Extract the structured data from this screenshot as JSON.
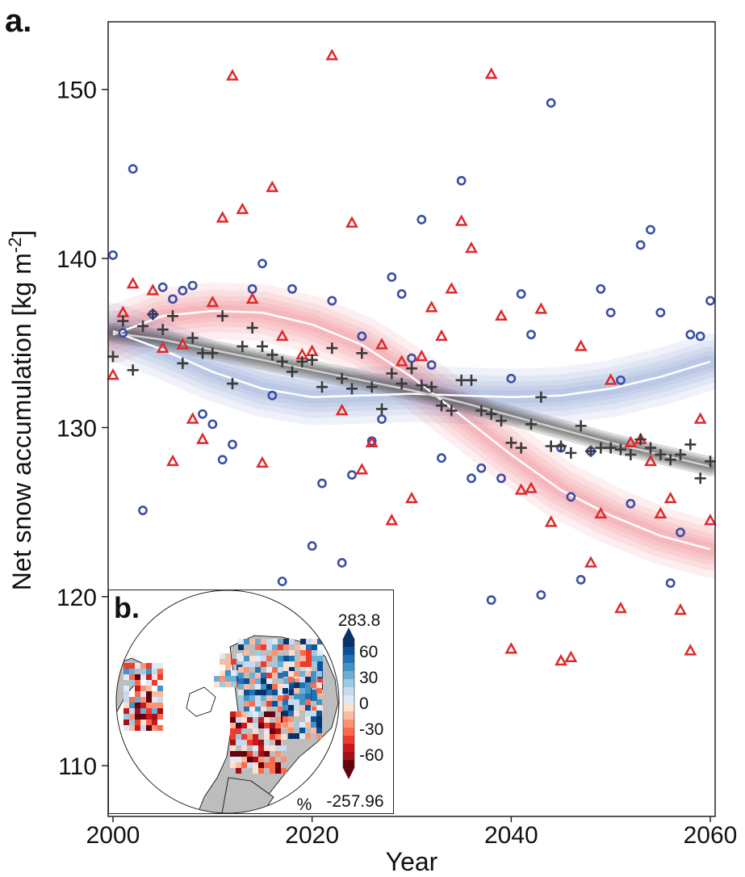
{
  "panel_a_label": "a.",
  "panel_b_label": "b.",
  "chart_data": {
    "type": "scatter",
    "xlabel": "Year",
    "ylabel": "Net snow accumulation [kg m",
    "ylabel_sup": "-2",
    "ylabel_tail": "]",
    "xlim": [
      2000,
      2060
    ],
    "ylim": [
      107,
      154
    ],
    "xticks": [
      2000,
      2020,
      2040,
      2060
    ],
    "yticks": [
      110,
      120,
      130,
      140,
      150
    ],
    "series": [
      {
        "marker": "circle",
        "color": "#3a4ea6",
        "points": [
          [
            2000,
            140.2
          ],
          [
            2001,
            135.6
          ],
          [
            2002,
            145.3
          ],
          [
            2003,
            125.1
          ],
          [
            2004,
            136.7
          ],
          [
            2005,
            138.3
          ],
          [
            2006,
            137.6
          ],
          [
            2007,
            138.1
          ],
          [
            2008,
            138.4
          ],
          [
            2009,
            130.8
          ],
          [
            2010,
            130.2
          ],
          [
            2011,
            128.1
          ],
          [
            2012,
            129.0
          ],
          [
            2014,
            138.2
          ],
          [
            2015,
            139.7
          ],
          [
            2016,
            131.9
          ],
          [
            2017,
            120.9
          ],
          [
            2018,
            138.2
          ],
          [
            2020,
            123.0
          ],
          [
            2021,
            126.7
          ],
          [
            2022,
            137.5
          ],
          [
            2023,
            122.0
          ],
          [
            2024,
            127.2
          ],
          [
            2025,
            135.4
          ],
          [
            2026,
            129.2
          ],
          [
            2027,
            130.5
          ],
          [
            2028,
            138.9
          ],
          [
            2029,
            137.9
          ],
          [
            2030,
            134.1
          ],
          [
            2031,
            142.3
          ],
          [
            2032,
            133.7
          ],
          [
            2033,
            128.2
          ],
          [
            2035,
            144.6
          ],
          [
            2036,
            127.0
          ],
          [
            2037,
            127.6
          ],
          [
            2038,
            119.8
          ],
          [
            2039,
            127.0
          ],
          [
            2040,
            132.9
          ],
          [
            2041,
            137.9
          ],
          [
            2042,
            135.5
          ],
          [
            2043,
            120.1
          ],
          [
            2044,
            149.2
          ],
          [
            2045,
            128.8
          ],
          [
            2046,
            125.9
          ],
          [
            2047,
            121.0
          ],
          [
            2048,
            128.6
          ],
          [
            2049,
            138.2
          ],
          [
            2050,
            136.8
          ],
          [
            2051,
            132.8
          ],
          [
            2052,
            125.5
          ],
          [
            2053,
            140.8
          ],
          [
            2054,
            141.7
          ],
          [
            2055,
            136.8
          ],
          [
            2056,
            120.8
          ],
          [
            2057,
            123.8
          ],
          [
            2058,
            135.5
          ],
          [
            2059,
            135.4
          ],
          [
            2060,
            137.5
          ]
        ]
      },
      {
        "marker": "triangle",
        "color": "#e0282a",
        "points": [
          [
            2000,
            133.1
          ],
          [
            2001,
            136.8
          ],
          [
            2002,
            138.5
          ],
          [
            2004,
            138.1
          ],
          [
            2005,
            134.7
          ],
          [
            2006,
            128.0
          ],
          [
            2007,
            134.9
          ],
          [
            2008,
            130.5
          ],
          [
            2009,
            129.3
          ],
          [
            2010,
            137.4
          ],
          [
            2011,
            142.4
          ],
          [
            2012,
            150.8
          ],
          [
            2013,
            142.9
          ],
          [
            2014,
            137.6
          ],
          [
            2015,
            127.9
          ],
          [
            2016,
            144.2
          ],
          [
            2017,
            135.4
          ],
          [
            2019,
            134.3
          ],
          [
            2020,
            134.5
          ],
          [
            2022,
            152.0
          ],
          [
            2023,
            131.0
          ],
          [
            2024,
            142.1
          ],
          [
            2025,
            127.5
          ],
          [
            2026,
            129.1
          ],
          [
            2027,
            134.9
          ],
          [
            2028,
            124.5
          ],
          [
            2029,
            133.9
          ],
          [
            2030,
            125.8
          ],
          [
            2031,
            134.2
          ],
          [
            2032,
            137.1
          ],
          [
            2033,
            135.4
          ],
          [
            2034,
            138.2
          ],
          [
            2035,
            142.2
          ],
          [
            2036,
            140.6
          ],
          [
            2038,
            150.9
          ],
          [
            2039,
            136.6
          ],
          [
            2040,
            116.9
          ],
          [
            2041,
            126.3
          ],
          [
            2042,
            126.4
          ],
          [
            2043,
            137.0
          ],
          [
            2044,
            124.4
          ],
          [
            2045,
            116.2
          ],
          [
            2046,
            116.4
          ],
          [
            2047,
            134.8
          ],
          [
            2048,
            122.0
          ],
          [
            2049,
            124.9
          ],
          [
            2050,
            132.8
          ],
          [
            2051,
            119.3
          ],
          [
            2052,
            129.1
          ],
          [
            2053,
            129.3
          ],
          [
            2054,
            128.0
          ],
          [
            2055,
            124.9
          ],
          [
            2056,
            125.8
          ],
          [
            2057,
            119.2
          ],
          [
            2058,
            116.8
          ],
          [
            2059,
            130.5
          ],
          [
            2060,
            124.5
          ]
        ]
      },
      {
        "marker": "plus",
        "color": "#3a3a3a",
        "points": [
          [
            2000,
            134.2
          ],
          [
            2001,
            136.3
          ],
          [
            2002,
            133.4
          ],
          [
            2003,
            136.0
          ],
          [
            2004,
            136.7
          ],
          [
            2005,
            135.8
          ],
          [
            2006,
            136.6
          ],
          [
            2007,
            133.8
          ],
          [
            2008,
            135.3
          ],
          [
            2009,
            134.4
          ],
          [
            2010,
            134.4
          ],
          [
            2011,
            136.6
          ],
          [
            2012,
            132.6
          ],
          [
            2013,
            134.8
          ],
          [
            2014,
            135.9
          ],
          [
            2015,
            134.8
          ],
          [
            2016,
            134.3
          ],
          [
            2017,
            133.9
          ],
          [
            2018,
            133.3
          ],
          [
            2019,
            133.9
          ],
          [
            2020,
            134.0
          ],
          [
            2021,
            132.4
          ],
          [
            2022,
            134.7
          ],
          [
            2023,
            132.9
          ],
          [
            2024,
            132.3
          ],
          [
            2025,
            134.4
          ],
          [
            2026,
            132.4
          ],
          [
            2027,
            131.1
          ],
          [
            2028,
            133.2
          ],
          [
            2029,
            132.6
          ],
          [
            2030,
            133.5
          ],
          [
            2031,
            132.5
          ],
          [
            2032,
            132.4
          ],
          [
            2033,
            131.3
          ],
          [
            2034,
            131.0
          ],
          [
            2035,
            132.8
          ],
          [
            2036,
            132.8
          ],
          [
            2037,
            131.0
          ],
          [
            2038,
            130.8
          ],
          [
            2039,
            130.4
          ],
          [
            2040,
            129.1
          ],
          [
            2041,
            128.8
          ],
          [
            2042,
            130.2
          ],
          [
            2043,
            131.8
          ],
          [
            2044,
            128.9
          ],
          [
            2045,
            128.9
          ],
          [
            2046,
            128.5
          ],
          [
            2047,
            130.1
          ],
          [
            2048,
            128.6
          ],
          [
            2049,
            128.8
          ],
          [
            2050,
            128.8
          ],
          [
            2051,
            128.7
          ],
          [
            2052,
            128.4
          ],
          [
            2053,
            129.3
          ],
          [
            2054,
            128.8
          ],
          [
            2055,
            128.4
          ],
          [
            2056,
            128.1
          ],
          [
            2057,
            128.4
          ],
          [
            2058,
            129.0
          ],
          [
            2059,
            127.0
          ],
          [
            2060,
            128.0
          ]
        ]
      }
    ],
    "trend_lines": [
      {
        "color": "#ffffff",
        "band_color": "#e8424a",
        "x": [
          2000,
          2005,
          2010,
          2015,
          2020,
          2025,
          2030,
          2035,
          2040,
          2045,
          2050,
          2055,
          2060
        ],
        "y": [
          135.5,
          136.6,
          136.9,
          136.8,
          136.1,
          134.9,
          133.0,
          130.7,
          128.4,
          126.3,
          124.8,
          123.6,
          122.8
        ]
      },
      {
        "color": "#ffffff",
        "band_color": "#4f6fb8",
        "x": [
          2000,
          2005,
          2010,
          2015,
          2020,
          2025,
          2030,
          2035,
          2040,
          2045,
          2050,
          2055,
          2060
        ],
        "y": [
          135.7,
          134.6,
          133.3,
          132.3,
          131.8,
          131.9,
          132.0,
          131.9,
          131.8,
          131.9,
          132.3,
          133.0,
          133.9
        ]
      },
      {
        "color": "#d0d0d0",
        "band_color": "#555555",
        "x": [
          2000,
          2005,
          2010,
          2015,
          2020,
          2025,
          2030,
          2035,
          2040,
          2045,
          2050,
          2055,
          2060
        ],
        "y": [
          135.6,
          135.2,
          134.6,
          134.0,
          133.4,
          132.8,
          132.2,
          131.5,
          130.7,
          129.9,
          129.1,
          128.4,
          127.7
        ]
      }
    ]
  },
  "inset": {
    "unit_label": "%",
    "colorbar": {
      "max_label": "283.8",
      "min_label": "-257.96",
      "ticks": [
        "60",
        "30",
        "0",
        "-30",
        "-60"
      ],
      "tick_values": [
        60,
        30,
        0,
        -30,
        -60
      ],
      "range": [
        -75,
        75
      ],
      "colors": [
        "#67000d",
        "#a50f15",
        "#cb181d",
        "#ef3b2c",
        "#fb6a4a",
        "#fc9272",
        "#fcbba1",
        "#fee0d2",
        "#deebf7",
        "#c6dbef",
        "#9ecae1",
        "#6baed6",
        "#4292c6",
        "#2171b5",
        "#08519c",
        "#08306b"
      ]
    }
  }
}
